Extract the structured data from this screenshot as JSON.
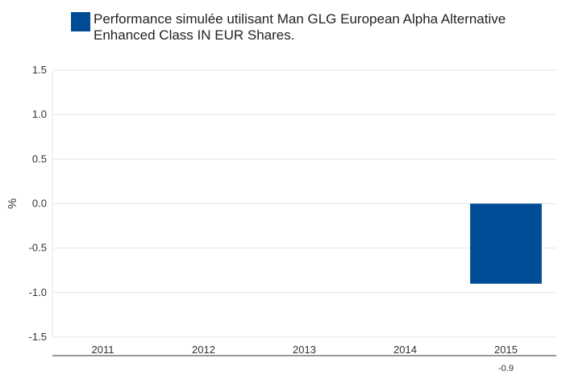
{
  "chart_data": {
    "type": "bar",
    "categories": [
      "2011",
      "2012",
      "2013",
      "2014",
      "2015"
    ],
    "series": [
      {
        "name": "Performance simulée utilisant Man GLG European Alpha Alternative Enhanced Class IN EUR Shares.",
        "values": [
          null,
          null,
          null,
          null,
          -0.9
        ],
        "color": "#004c97"
      }
    ],
    "data_labels": [
      "",
      "",
      "",
      "",
      "-0.9"
    ],
    "ylabel": "%",
    "ylim": [
      -1.5,
      1.5
    ],
    "yticks": [
      "1.5",
      "1.0",
      "0.5",
      "0.0",
      "-0.5",
      "-1.0",
      "-1.5"
    ],
    "grid": true,
    "legend_position": "top"
  }
}
